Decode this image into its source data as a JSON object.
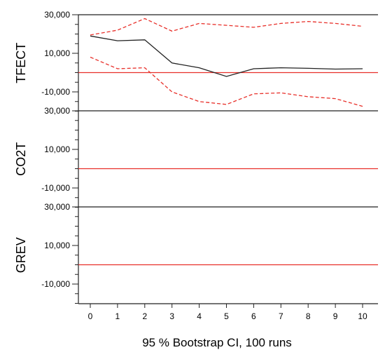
{
  "chart_data": {
    "type": "line",
    "footer": "95 % Bootstrap CI,  100 runs",
    "x": [
      0,
      1,
      2,
      3,
      4,
      5,
      6,
      7,
      8,
      9,
      10
    ],
    "xticks": [
      "0",
      "1",
      "2",
      "3",
      "4",
      "5",
      "6",
      "7",
      "8",
      "9",
      "10"
    ],
    "ylim": [
      -20000,
      30000
    ],
    "yticks": [
      {
        "value": 30000,
        "label": "30,000"
      },
      {
        "value": 10000,
        "label": "10,000"
      },
      {
        "value": -10000,
        "label": "-10,000"
      }
    ],
    "panels": [
      {
        "ylabel": "TFECT",
        "zero_line_color": "#e8302a",
        "series": [
          {
            "role": "estimate",
            "color": "#222222",
            "style": "solid",
            "values": [
              19000,
              16500,
              17000,
              5000,
              2500,
              -2000,
              2000,
              2500,
              2200,
              1800,
              2000
            ]
          },
          {
            "role": "upper_ci",
            "color": "#e8302a",
            "style": "dashed",
            "values": [
              19500,
              22000,
              28000,
              21500,
              25500,
              24500,
              23500,
              25500,
              26500,
              25500,
              24000
            ]
          },
          {
            "role": "lower_ci",
            "color": "#e8302a",
            "style": "dashed",
            "values": [
              8000,
              2000,
              2500,
              -10000,
              -15000,
              -16500,
              -11000,
              -10500,
              -12500,
              -13500,
              -17500
            ]
          }
        ]
      },
      {
        "ylabel": "CO2T",
        "zero_line_color": "#e8302a",
        "series": []
      },
      {
        "ylabel": "GREV",
        "zero_line_color": "#e8302a",
        "series": []
      }
    ]
  }
}
